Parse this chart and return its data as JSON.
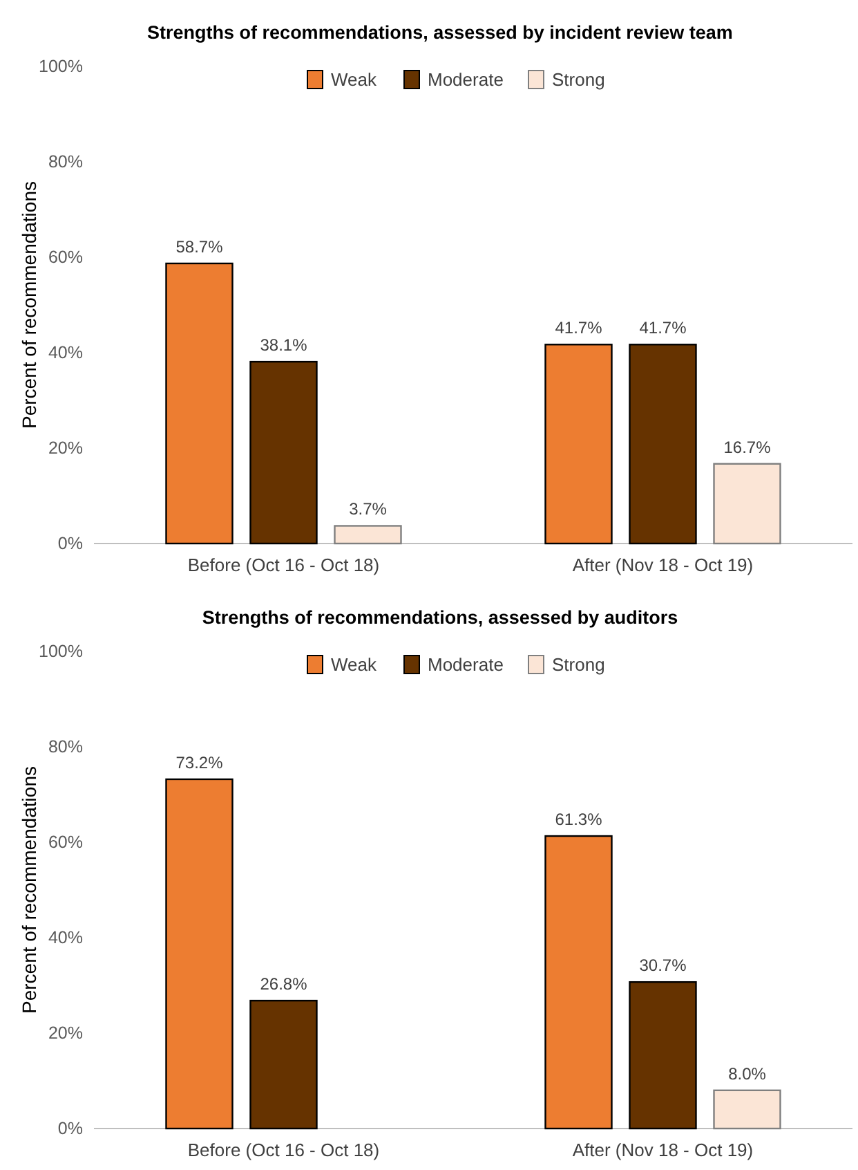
{
  "chart_data": [
    {
      "type": "bar",
      "title": "Strengths of recommendations, assessed by incident review team",
      "ylabel": "Percent of recommendations",
      "categories": [
        "Before (Oct 16 - Oct 18)",
        "After (Nov 18 - Oct 19)"
      ],
      "series": [
        {
          "name": "Weak",
          "color": "#ed7d31",
          "values": [
            58.7,
            41.7
          ],
          "value_labels": [
            "58.7%",
            "41.7%"
          ]
        },
        {
          "name": "Moderate",
          "color": "#663300",
          "values": [
            38.1,
            41.7
          ],
          "value_labels": [
            "38.1%",
            "41.7%"
          ]
        },
        {
          "name": "Strong",
          "color": "#fbe5d6",
          "values": [
            3.7,
            16.7
          ],
          "value_labels": [
            "3.7%",
            "16.7%"
          ]
        }
      ],
      "ylim": [
        0,
        100
      ],
      "yticks": [
        {
          "value": 0,
          "label": "0%"
        },
        {
          "value": 20,
          "label": "20%"
        },
        {
          "value": 40,
          "label": "40%"
        },
        {
          "value": 60,
          "label": "60%"
        },
        {
          "value": 80,
          "label": "80%"
        },
        {
          "value": 100,
          "label": "100%"
        }
      ],
      "grid": false,
      "legend": "top"
    },
    {
      "type": "bar",
      "title": "Strengths of recommendations, assessed by auditors",
      "ylabel": "Percent of recommendations",
      "categories": [
        "Before (Oct 16 - Oct 18)",
        "After (Nov 18 - Oct 19)"
      ],
      "series": [
        {
          "name": "Weak",
          "color": "#ed7d31",
          "values": [
            73.2,
            61.3
          ],
          "value_labels": [
            "73.2%",
            "61.3%"
          ]
        },
        {
          "name": "Moderate",
          "color": "#663300",
          "values": [
            26.8,
            30.7
          ],
          "value_labels": [
            "26.8%",
            "30.7%"
          ]
        },
        {
          "name": "Strong",
          "color": "#fbe5d6",
          "values": [
            null,
            8.0
          ],
          "value_labels": [
            null,
            "8.0%"
          ]
        }
      ],
      "ylim": [
        0,
        100
      ],
      "yticks": [
        {
          "value": 0,
          "label": "0%"
        },
        {
          "value": 20,
          "label": "20%"
        },
        {
          "value": 40,
          "label": "40%"
        },
        {
          "value": 60,
          "label": "60%"
        },
        {
          "value": 80,
          "label": "80%"
        },
        {
          "value": 100,
          "label": "100%"
        }
      ],
      "grid": false,
      "legend": "top"
    }
  ]
}
